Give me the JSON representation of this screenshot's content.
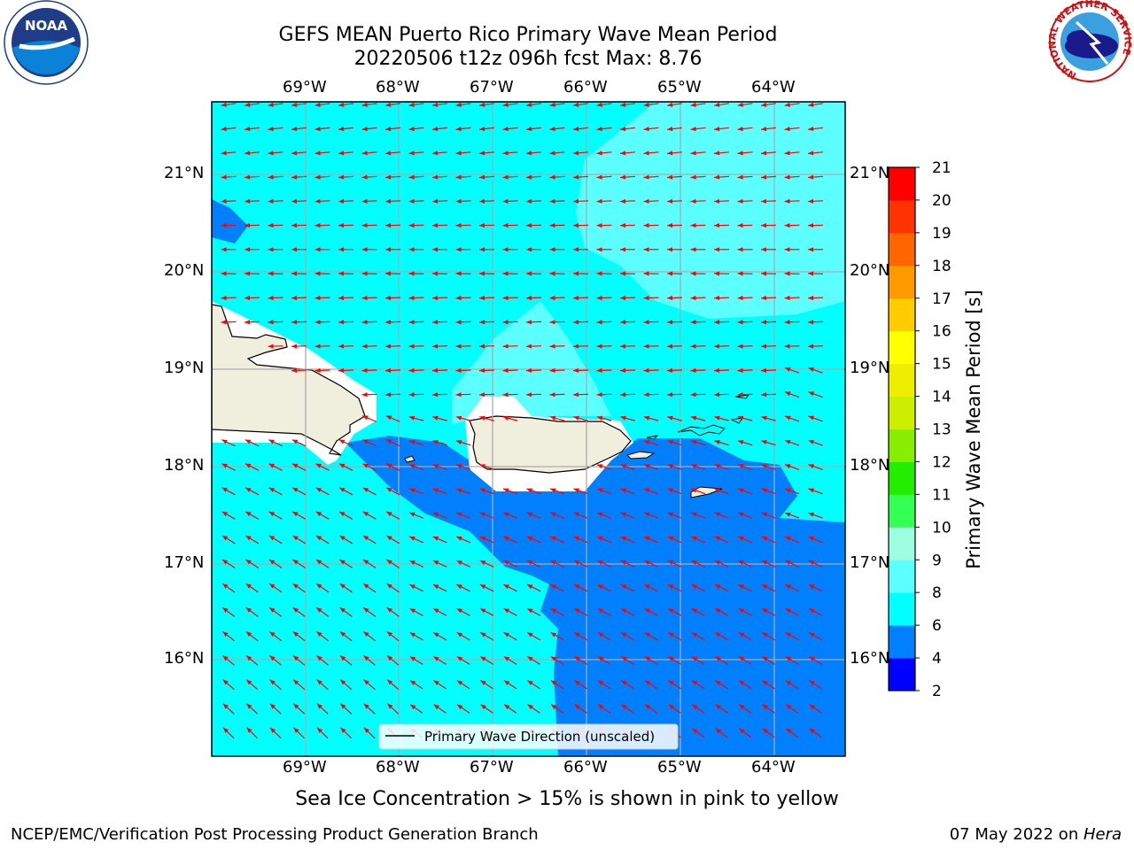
{
  "header": {
    "title_line1": "GEFS MEAN Puerto Rico Primary Wave Mean Period",
    "title_line2": "20220506 t12z 096h fcst   Max: 8.76"
  },
  "map": {
    "lon_labels": [
      "69°W",
      "68°W",
      "67°W",
      "66°W",
      "65°W",
      "64°W"
    ],
    "lat_labels": [
      "21°N",
      "20°N",
      "19°N",
      "18°N",
      "17°N",
      "16°N"
    ],
    "legend_label": "Primary Wave Direction (unscaled)",
    "arrow_color": "#ff0000",
    "land_color": "#f0eedc"
  },
  "colorbar": {
    "label": "Primary Wave Mean Period [s]",
    "ticks": [
      "2",
      "4",
      "6",
      "8",
      "9",
      "10",
      "11",
      "12",
      "13",
      "14",
      "15",
      "16",
      "17",
      "18",
      "19",
      "20",
      "21"
    ],
    "colors": [
      "#0000ff",
      "#0080ff",
      "#00ffff",
      "#5cffff",
      "#9effe0",
      "#33ff55",
      "#22ee00",
      "#88ee00",
      "#ccee00",
      "#eeee00",
      "#ffff00",
      "#ffcc00",
      "#ff9900",
      "#ff6600",
      "#ff3300",
      "#ff0000"
    ]
  },
  "subtitle": "Sea Ice Concentration > 15% is shown in pink to yellow",
  "footer": {
    "left": "NCEP/EMC/Verification Post Processing Product Generation Branch",
    "right_date": "07 May 2022 on ",
    "right_host": "Hera"
  },
  "logos": {
    "noaa": "NOAA",
    "nws_ring": "NATIONAL WEATHER SERVICE"
  }
}
